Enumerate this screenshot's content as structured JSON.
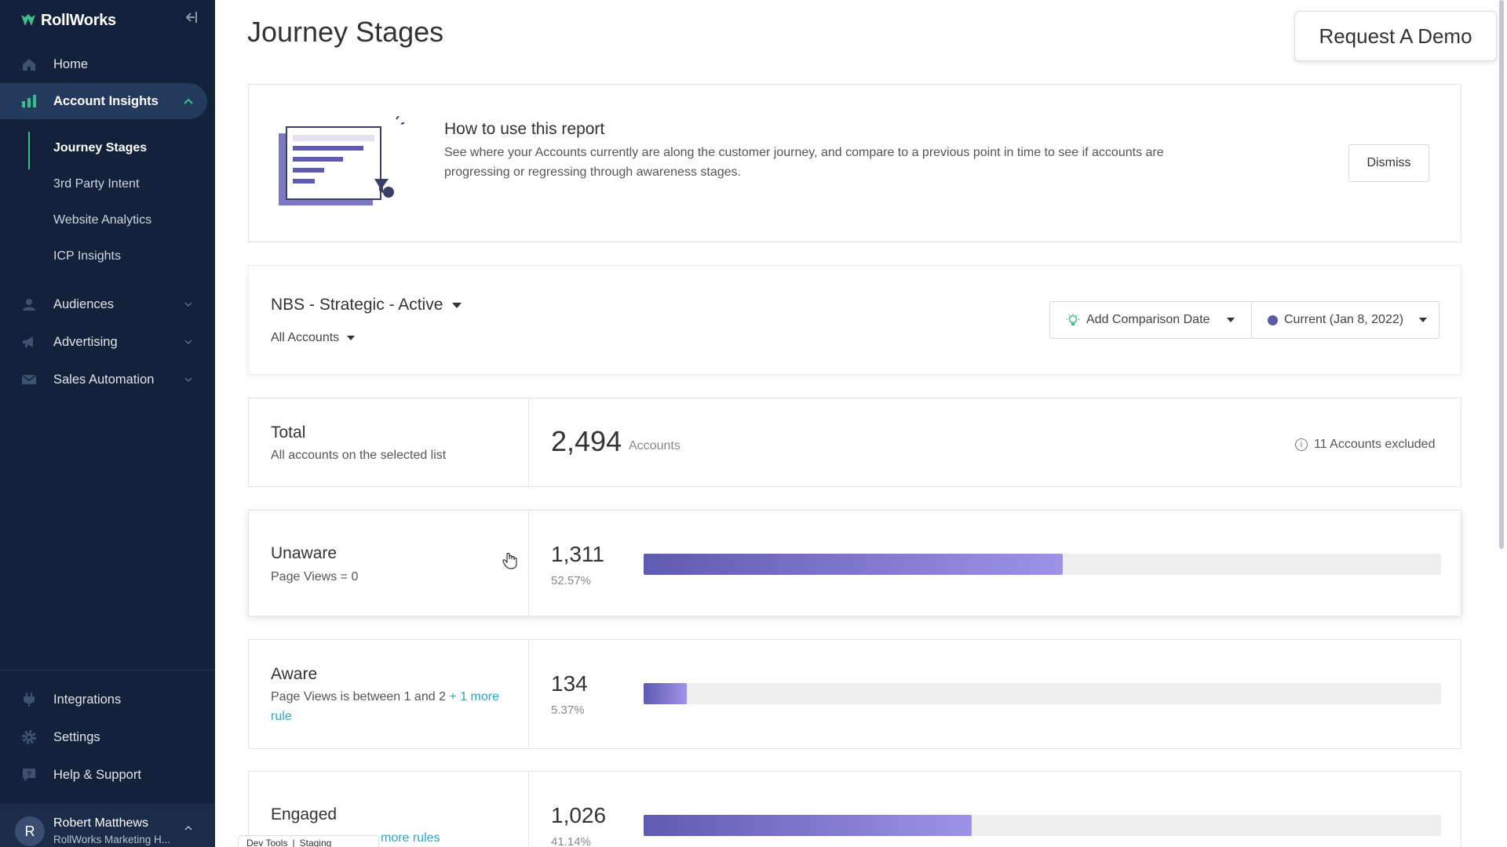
{
  "brand": {
    "name": "RollWorks"
  },
  "sidebar": {
    "items": [
      {
        "label": "Home",
        "icon": "home-icon"
      },
      {
        "label": "Account Insights",
        "icon": "bar-chart-icon",
        "active": true
      },
      {
        "label": "Audiences",
        "icon": "people-icon"
      },
      {
        "label": "Advertising",
        "icon": "megaphone-icon"
      },
      {
        "label": "Sales Automation",
        "icon": "mail-icon"
      }
    ],
    "subitems": [
      {
        "label": "Journey Stages",
        "active": true
      },
      {
        "label": "3rd Party Intent"
      },
      {
        "label": "Website Analytics"
      },
      {
        "label": "ICP Insights"
      }
    ],
    "bottom": [
      {
        "label": "Integrations",
        "icon": "plug-icon"
      },
      {
        "label": "Settings",
        "icon": "gear-icon"
      },
      {
        "label": "Help & Support",
        "icon": "help-icon"
      }
    ],
    "user": {
      "initial": "R",
      "name": "Robert Matthews",
      "org": "RollWorks Marketing H..."
    }
  },
  "page": {
    "title": "Journey Stages"
  },
  "demo_button": "Request A Demo",
  "howto": {
    "title": "How to use this report",
    "description": "See where your Accounts currently are along the customer journey, and compare to a previous point in time to see if accounts are progressing or regressing through awareness stages.",
    "dismiss": "Dismiss"
  },
  "filters": {
    "list_name": "NBS - Strategic - Active",
    "account_filter": "All Accounts",
    "comparison": "Add Comparison Date",
    "current": "Current (Jan 8, 2022)"
  },
  "total": {
    "title": "Total",
    "subtitle": "All accounts on the selected list",
    "count": "2,494",
    "count_label": "Accounts",
    "excluded": "11 Accounts excluded"
  },
  "stages": [
    {
      "title": "Unaware",
      "rule": "Page Views = 0",
      "more": "",
      "count": "1,311",
      "percent": "52.57%",
      "fraction": 0.5257
    },
    {
      "title": "Aware",
      "rule": "Page Views is between 1 and 2",
      "more": "+ 1 more rule",
      "count": "134",
      "percent": "5.37%",
      "fraction": 0.0537
    },
    {
      "title": "Engaged",
      "rule": "",
      "more": "more rules",
      "count": "1,026",
      "percent": "41.14%",
      "fraction": 0.4114
    }
  ],
  "devtools": {
    "left": "Dev Tools",
    "sep": "|",
    "right": "Staging"
  },
  "colors": {
    "sidebar": "#13223a",
    "accent_green": "#3bbf8a",
    "bar_start": "#5f5bb0",
    "bar_end": "#9e92e8",
    "link": "#2aa7c9"
  }
}
